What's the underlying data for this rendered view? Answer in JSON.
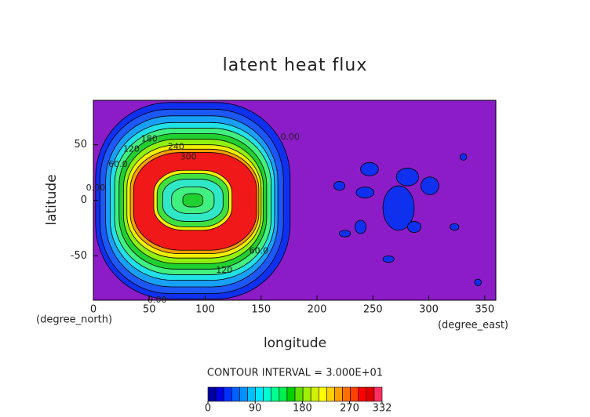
{
  "chart_data": {
    "type": "contour",
    "title": "latent heat flux",
    "xlabel": "longitude",
    "ylabel": "latitude",
    "xunit": "(degree_east)",
    "yunit": "(degree_north)",
    "xlim": [
      0,
      360
    ],
    "ylim": [
      -90,
      90
    ],
    "xticks": [
      0,
      50,
      100,
      150,
      200,
      250,
      300,
      350
    ],
    "yticks": [
      -50,
      0,
      50
    ],
    "background_color": "#8c1cc8",
    "rings": [
      {
        "lon": [
          2,
          176
        ],
        "lat": [
          -89,
          88
        ],
        "color": "#1030f0"
      },
      {
        "lon": [
          6,
          170
        ],
        "lat": [
          -84,
          82
        ],
        "color": "#1c58f8"
      },
      {
        "lon": [
          11,
          165
        ],
        "lat": [
          -78,
          76
        ],
        "color": "#18a0f8"
      },
      {
        "lon": [
          15,
          162
        ],
        "lat": [
          -72,
          70
        ],
        "color": "#20e0e8"
      },
      {
        "lon": [
          19,
          159
        ],
        "lat": [
          -67,
          65
        ],
        "color": "#40f080"
      },
      {
        "lon": [
          23,
          155
        ],
        "lat": [
          -62,
          60
        ],
        "color": "#20d030"
      },
      {
        "lon": [
          27,
          152
        ],
        "lat": [
          -57,
          55
        ],
        "color": "#90f010"
      },
      {
        "lon": [
          30,
          150
        ],
        "lat": [
          -52,
          50
        ],
        "color": "#f0f000"
      },
      {
        "lon": [
          33,
          148
        ],
        "lat": [
          -48,
          46
        ],
        "color": "#f8a000"
      },
      {
        "lon": [
          36,
          146
        ],
        "lat": [
          -45,
          43
        ],
        "color": "#f01818"
      },
      {
        "lon": [
          54,
          124
        ],
        "lat": [
          -27,
          27
        ],
        "color": "#f0f000"
      },
      {
        "lon": [
          57,
          121
        ],
        "lat": [
          -24,
          24
        ],
        "color": "#40e040"
      },
      {
        "lon": [
          62,
          116
        ],
        "lat": [
          -19,
          19
        ],
        "color": "#30e8c8"
      },
      {
        "lon": [
          70,
          108
        ],
        "lat": [
          -12,
          12
        ],
        "color": "#40f080"
      },
      {
        "lon": [
          80,
          98
        ],
        "lat": [
          -6,
          6
        ],
        "color": "#20d030"
      }
    ],
    "patches": [
      {
        "lon": 273,
        "lat": -7,
        "rlon": 14,
        "rlat": 20
      },
      {
        "lon": 243,
        "lat": 7,
        "rlon": 8,
        "rlat": 5
      },
      {
        "lon": 281,
        "lat": 21,
        "rlon": 10,
        "rlat": 8
      },
      {
        "lon": 301,
        "lat": 13,
        "rlon": 8,
        "rlat": 8
      },
      {
        "lon": 247,
        "lat": 28,
        "rlon": 8,
        "rlat": 6
      },
      {
        "lon": 220,
        "lat": 13,
        "rlon": 5,
        "rlat": 4
      },
      {
        "lon": 225,
        "lat": -30,
        "rlon": 5,
        "rlat": 3
      },
      {
        "lon": 264,
        "lat": -53,
        "rlon": 5,
        "rlat": 3
      },
      {
        "lon": 323,
        "lat": -24,
        "rlon": 4,
        "rlat": 3
      },
      {
        "lon": 344,
        "lat": -74,
        "rlon": 3,
        "rlat": 3
      },
      {
        "lon": 331,
        "lat": 39,
        "rlon": 3,
        "rlat": 3
      },
      {
        "lon": 287,
        "lat": -24,
        "rlon": 6,
        "rlat": 5
      },
      {
        "lon": 239,
        "lat": -24,
        "rlon": 5,
        "rlat": 6
      }
    ],
    "patch_color": "#1030f0",
    "contour_labels": [
      {
        "text": "60.0",
        "lon": 22,
        "lat": 32
      },
      {
        "text": "120",
        "lon": 34,
        "lat": 46
      },
      {
        "text": "180",
        "lon": 50,
        "lat": 55
      },
      {
        "text": "240",
        "lon": 74,
        "lat": 48
      },
      {
        "text": "300",
        "lon": 85,
        "lat": 39
      },
      {
        "text": "60.0",
        "lon": 148,
        "lat": -46
      },
      {
        "text": "120",
        "lon": 117,
        "lat": -63
      },
      {
        "text": "0.00",
        "lon": 57,
        "lat": -90
      },
      {
        "text": "0.00",
        "lon": 176,
        "lat": 57
      },
      {
        "text": "0.00",
        "lon": 2,
        "lat": 11
      }
    ],
    "contour_interval_text": "CONTOUR INTERVAL = 3.000E+01",
    "colorbar": {
      "range": [
        0,
        332
      ],
      "ticks": [
        0,
        90,
        180,
        270,
        332
      ],
      "colors": [
        "#0000a0",
        "#0000e0",
        "#0030ff",
        "#0060ff",
        "#0090ff",
        "#00c0ff",
        "#00e8ff",
        "#00ffd0",
        "#00ff90",
        "#00f050",
        "#00d000",
        "#60e000",
        "#a0f000",
        "#d0f000",
        "#ffff00",
        "#ffd000",
        "#ffa000",
        "#ff7000",
        "#ff4000",
        "#ff0000",
        "#e00000",
        "#ff3060"
      ]
    }
  }
}
